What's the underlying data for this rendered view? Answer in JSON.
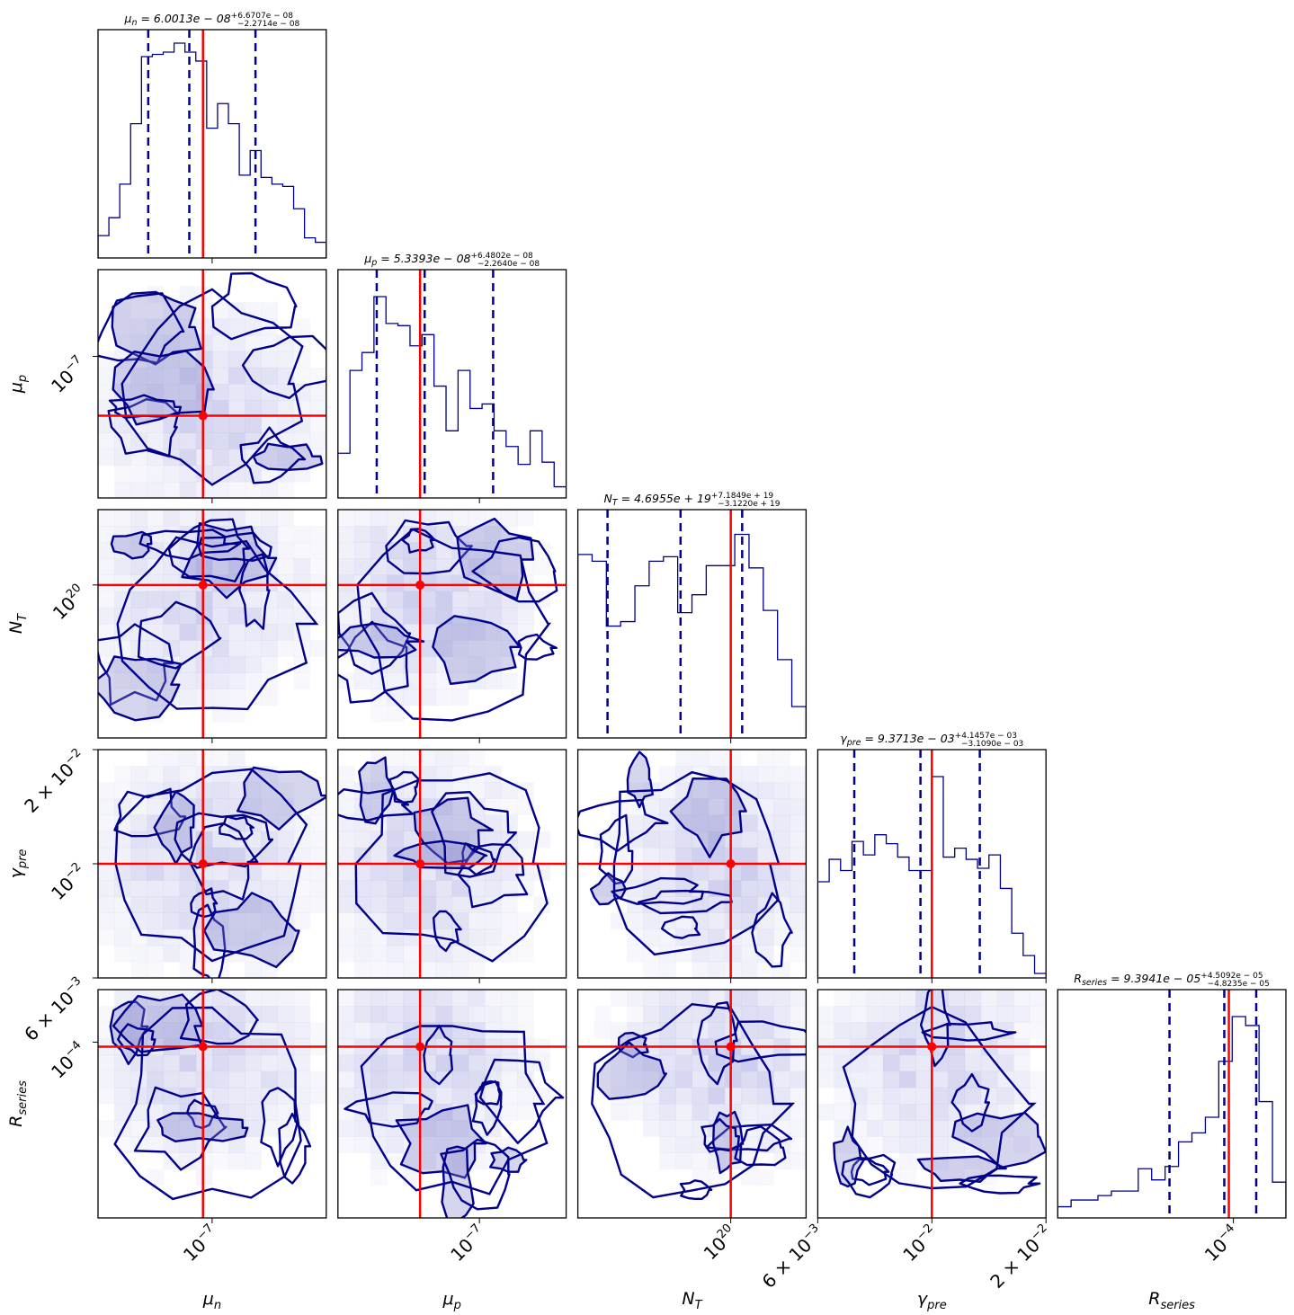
{
  "chart_data": {
    "type": "corner",
    "parameters": [
      {
        "key": "mu_n",
        "label_main": "μ",
        "label_sub": "n",
        "title_value": "6.0013e − 08",
        "err_plus": "+6.6707e − 08",
        "err_minus": "−2.2714e − 08",
        "ticks": [
          {
            "text": "10",
            "exp": "−7",
            "t": 0.5
          }
        ],
        "truth": 6.0013e-08,
        "truth_frac": 0.46,
        "quantile_fracs": [
          0.22,
          0.4,
          0.69
        ],
        "hist_frac": [
          0.1,
          0.18,
          0.33,
          0.6,
          0.9,
          0.91,
          0.92,
          0.96,
          0.92,
          0.88,
          0.58,
          0.69,
          0.6,
          0.37,
          0.48,
          0.36,
          0.33,
          0.32,
          0.22,
          0.09,
          0.07
        ]
      },
      {
        "key": "mu_p",
        "label_main": "μ",
        "label_sub": "p",
        "title_value": "5.3393e − 08",
        "err_plus": "+6.4802e − 08",
        "err_minus": "−2.2640e − 08",
        "ticks": [
          {
            "text": "10",
            "exp": "−7",
            "t": 0.62
          }
        ],
        "truth": 5.3393e-08,
        "truth_frac": 0.36,
        "quantile_fracs": [
          0.17,
          0.38,
          0.68
        ],
        "hist_frac": [
          0.2,
          0.57,
          0.65,
          0.9,
          0.78,
          0.77,
          0.68,
          0.73,
          0.5,
          0.3,
          0.57,
          0.4,
          0.42,
          0.3,
          0.23,
          0.15,
          0.3,
          0.16,
          0.05
        ]
      },
      {
        "key": "N_T",
        "label_main": "N",
        "label_sub": "T",
        "title_value": "4.6955e + 19",
        "err_plus": "+7.1849e + 19",
        "err_minus": "−3.1220e + 19",
        "ticks": [
          {
            "text": "10",
            "exp": "20",
            "t": 0.67
          }
        ],
        "truth": 1e+20,
        "truth_frac": 0.67,
        "quantile_fracs": [
          0.13,
          0.45,
          0.72
        ],
        "hist_frac": [
          0.82,
          0.79,
          0.5,
          0.52,
          0.68,
          0.79,
          0.81,
          0.56,
          0.64,
          0.77,
          0.77,
          0.91,
          0.76,
          0.57,
          0.35,
          0.14
        ]
      },
      {
        "key": "gamma_pre",
        "label_main": "γ",
        "label_sub": "pre",
        "title_value": "9.3713e − 03",
        "err_plus": "+4.1457e − 03",
        "err_minus": "−3.1090e − 03",
        "ticks": [
          {
            "text": "6 × 10",
            "exp": "−3",
            "t": 0.0
          },
          {
            "text": "10",
            "exp": "−2",
            "t": 0.5
          },
          {
            "text": "2 × 10",
            "exp": "−2",
            "t": 1.0
          }
        ],
        "truth": 0.0093713,
        "truth_frac": 0.5,
        "quantile_fracs": [
          0.16,
          0.45,
          0.71
        ],
        "hist_frac": [
          0.43,
          0.53,
          0.48,
          0.61,
          0.55,
          0.64,
          0.6,
          0.54,
          0.48,
          0.48,
          0.9,
          0.54,
          0.58,
          0.53,
          0.49,
          0.55,
          0.4,
          0.2,
          0.1,
          0.02
        ]
      },
      {
        "key": "R_series",
        "label_main": "R",
        "label_sub": "series",
        "title_value": "9.3941e − 05",
        "err_plus": "+4.5092e − 05",
        "err_minus": "−4.8235e − 05",
        "ticks": [
          {
            "text": "10",
            "exp": "−4",
            "t": 0.77
          }
        ],
        "truth": 9.3941e-05,
        "truth_frac": 0.75,
        "quantile_fracs": [
          0.49,
          0.73,
          0.87
        ],
        "hist_frac": [
          0.05,
          0.08,
          0.08,
          0.1,
          0.12,
          0.12,
          0.22,
          0.17,
          0.23,
          0.34,
          0.38,
          0.45,
          0.7,
          0.9,
          0.86,
          0.52,
          0.16
        ]
      }
    ]
  },
  "style": {
    "contour_color": "#00008b",
    "hist_color": "#00008b",
    "truth_color": "#ff0000",
    "fill_color": "#c8c8ec"
  }
}
